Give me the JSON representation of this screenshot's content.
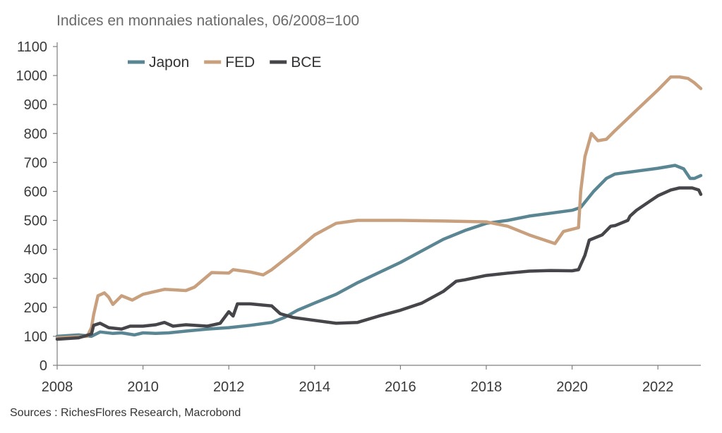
{
  "chart_data": {
    "type": "line",
    "title": "Indices en monnaies nationales, 06/2008=100",
    "source": "Sources : RichesFlores Research, Macrobond",
    "ylim": [
      0,
      1100
    ],
    "yticks": [
      "0",
      "100",
      "200",
      "300",
      "400",
      "500",
      "600",
      "700",
      "800",
      "900",
      "1000",
      "1100"
    ],
    "xlim": [
      2008,
      2023
    ],
    "xticks": [
      "2008",
      "2010",
      "2012",
      "2014",
      "2016",
      "2018",
      "2020",
      "2022"
    ],
    "legend_position": "top-left",
    "grid": false,
    "series": [
      {
        "name": "Japon",
        "color": "#5a8694",
        "points": [
          [
            2008.0,
            100
          ],
          [
            2008.5,
            105
          ],
          [
            2008.8,
            100
          ],
          [
            2009.0,
            115
          ],
          [
            2009.3,
            110
          ],
          [
            2009.5,
            112
          ],
          [
            2009.8,
            105
          ],
          [
            2010.0,
            112
          ],
          [
            2010.3,
            110
          ],
          [
            2010.6,
            112
          ],
          [
            2011.0,
            118
          ],
          [
            2011.5,
            125
          ],
          [
            2012.0,
            130
          ],
          [
            2012.5,
            138
          ],
          [
            2013.0,
            148
          ],
          [
            2013.3,
            165
          ],
          [
            2013.6,
            190
          ],
          [
            2014.0,
            215
          ],
          [
            2014.5,
            245
          ],
          [
            2015.0,
            285
          ],
          [
            2015.5,
            320
          ],
          [
            2016.0,
            355
          ],
          [
            2016.5,
            395
          ],
          [
            2017.0,
            435
          ],
          [
            2017.5,
            465
          ],
          [
            2018.0,
            490
          ],
          [
            2018.5,
            500
          ],
          [
            2019.0,
            515
          ],
          [
            2019.5,
            525
          ],
          [
            2020.0,
            535
          ],
          [
            2020.2,
            545
          ],
          [
            2020.5,
            600
          ],
          [
            2020.8,
            645
          ],
          [
            2021.0,
            660
          ],
          [
            2021.5,
            670
          ],
          [
            2022.0,
            680
          ],
          [
            2022.4,
            690
          ],
          [
            2022.6,
            678
          ],
          [
            2022.75,
            645
          ],
          [
            2022.85,
            645
          ],
          [
            2023.0,
            655
          ]
        ]
      },
      {
        "name": "FED",
        "color": "#c9a07e",
        "points": [
          [
            2008.0,
            95
          ],
          [
            2008.7,
            100
          ],
          [
            2008.8,
            130
          ],
          [
            2008.85,
            175
          ],
          [
            2008.95,
            240
          ],
          [
            2009.1,
            250
          ],
          [
            2009.2,
            235
          ],
          [
            2009.3,
            210
          ],
          [
            2009.5,
            240
          ],
          [
            2009.75,
            225
          ],
          [
            2010.0,
            245
          ],
          [
            2010.5,
            262
          ],
          [
            2011.0,
            258
          ],
          [
            2011.2,
            270
          ],
          [
            2011.6,
            320
          ],
          [
            2012.0,
            318
          ],
          [
            2012.1,
            330
          ],
          [
            2012.5,
            322
          ],
          [
            2012.8,
            312
          ],
          [
            2013.0,
            330
          ],
          [
            2013.3,
            365
          ],
          [
            2013.6,
            400
          ],
          [
            2014.0,
            450
          ],
          [
            2014.5,
            490
          ],
          [
            2015.0,
            500
          ],
          [
            2016.0,
            500
          ],
          [
            2017.0,
            498
          ],
          [
            2018.0,
            495
          ],
          [
            2018.5,
            480
          ],
          [
            2019.0,
            450
          ],
          [
            2019.3,
            435
          ],
          [
            2019.6,
            420
          ],
          [
            2019.8,
            462
          ],
          [
            2020.15,
            475
          ],
          [
            2020.2,
            600
          ],
          [
            2020.3,
            720
          ],
          [
            2020.45,
            800
          ],
          [
            2020.6,
            775
          ],
          [
            2020.8,
            780
          ],
          [
            2021.0,
            810
          ],
          [
            2021.5,
            880
          ],
          [
            2022.0,
            950
          ],
          [
            2022.3,
            995
          ],
          [
            2022.5,
            995
          ],
          [
            2022.7,
            990
          ],
          [
            2022.85,
            975
          ],
          [
            2023.0,
            955
          ]
        ]
      },
      {
        "name": "BCE",
        "color": "#464549",
        "points": [
          [
            2008.0,
            90
          ],
          [
            2008.5,
            95
          ],
          [
            2008.8,
            108
          ],
          [
            2008.85,
            138
          ],
          [
            2009.0,
            145
          ],
          [
            2009.2,
            130
          ],
          [
            2009.5,
            125
          ],
          [
            2009.7,
            135
          ],
          [
            2010.0,
            135
          ],
          [
            2010.3,
            140
          ],
          [
            2010.5,
            148
          ],
          [
            2010.7,
            135
          ],
          [
            2011.0,
            140
          ],
          [
            2011.5,
            135
          ],
          [
            2011.8,
            145
          ],
          [
            2012.0,
            185
          ],
          [
            2012.1,
            170
          ],
          [
            2012.2,
            212
          ],
          [
            2012.5,
            212
          ],
          [
            2013.0,
            205
          ],
          [
            2013.2,
            178
          ],
          [
            2013.5,
            165
          ],
          [
            2014.0,
            155
          ],
          [
            2014.5,
            145
          ],
          [
            2015.0,
            148
          ],
          [
            2015.5,
            170
          ],
          [
            2016.0,
            190
          ],
          [
            2016.5,
            215
          ],
          [
            2017.0,
            255
          ],
          [
            2017.3,
            290
          ],
          [
            2017.5,
            295
          ],
          [
            2018.0,
            310
          ],
          [
            2018.5,
            318
          ],
          [
            2019.0,
            325
          ],
          [
            2019.5,
            327
          ],
          [
            2020.0,
            326
          ],
          [
            2020.15,
            330
          ],
          [
            2020.3,
            380
          ],
          [
            2020.4,
            432
          ],
          [
            2020.7,
            450
          ],
          [
            2020.9,
            480
          ],
          [
            2021.0,
            482
          ],
          [
            2021.3,
            500
          ],
          [
            2021.35,
            515
          ],
          [
            2021.5,
            535
          ],
          [
            2021.8,
            565
          ],
          [
            2022.0,
            585
          ],
          [
            2022.3,
            605
          ],
          [
            2022.5,
            612
          ],
          [
            2022.8,
            612
          ],
          [
            2022.95,
            605
          ],
          [
            2023.0,
            590
          ]
        ]
      }
    ]
  }
}
